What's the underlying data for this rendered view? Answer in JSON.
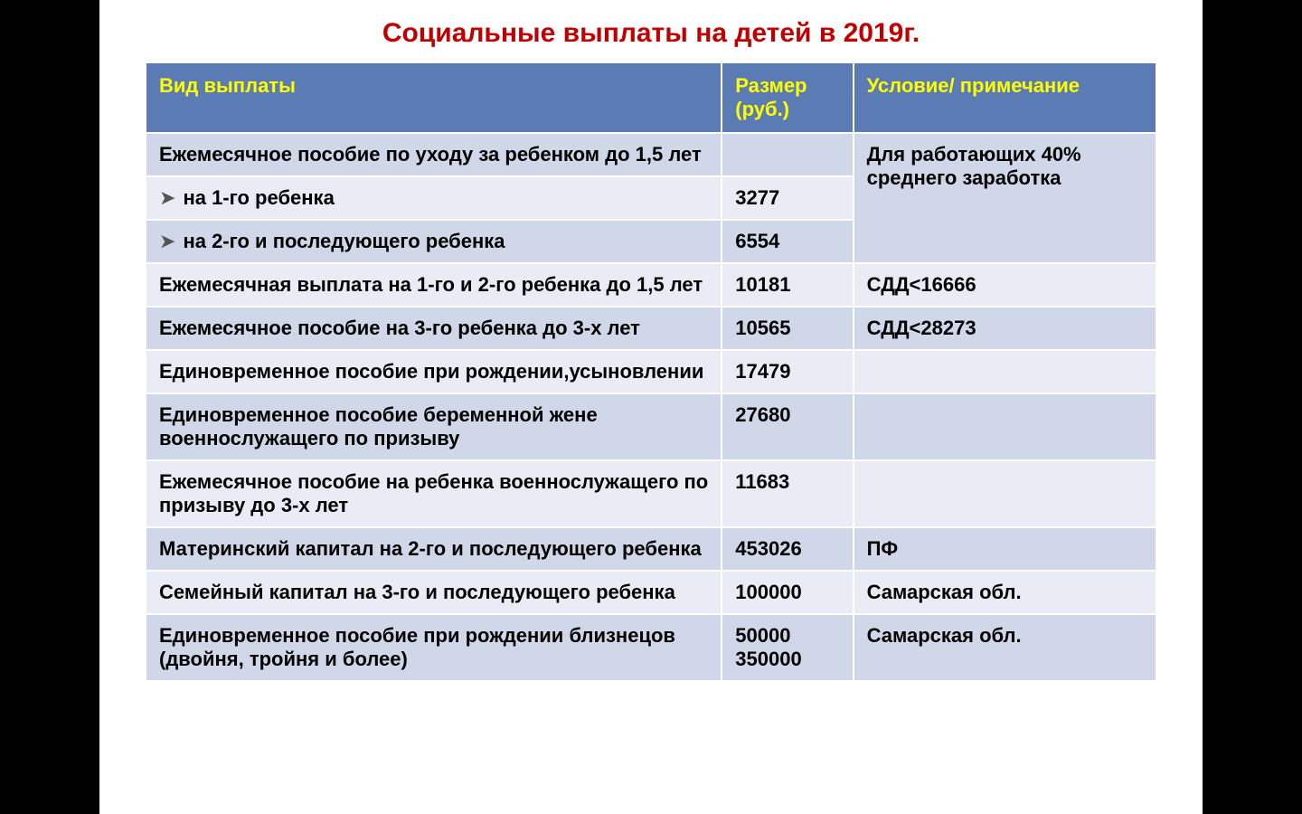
{
  "title": "Социальные выплаты на детей в 2019г.",
  "title_color": "#c00000",
  "title_fontsize": 30,
  "columns": [
    {
      "label": "Вид выплаты",
      "width": "57%"
    },
    {
      "label": "Размер (руб.)",
      "width": "13%"
    },
    {
      "label": "Условие/ примечание",
      "width": "30%"
    }
  ],
  "header_bg": "#5b7bb4",
  "header_text_color": "#ffff00",
  "header_fontsize": 22,
  "row_bg_a": "#d0d7e9",
  "row_bg_b": "#e9ecf5",
  "cell_text_color": "#000000",
  "cell_fontsize": 22,
  "bullet_glyph": "➤",
  "rows": [
    {
      "type": "plain",
      "payment": "Ежемесячное пособие по уходу за ребенком до 1,5 лет",
      "amount": "",
      "note": "Для работающих 40% среднего заработка",
      "note_rowspan": 3
    },
    {
      "type": "bullet",
      "payment": "на 1-го ребенка",
      "amount": "3277",
      "note": null
    },
    {
      "type": "bullet",
      "payment": "на 2-го и последующего ребенка",
      "amount": "6554",
      "note": null
    },
    {
      "type": "plain",
      "payment": "Ежемесячная выплата на 1-го и 2-го ребенка до 1,5 лет",
      "amount": "10181",
      "note": "СДД<16666"
    },
    {
      "type": "plain",
      "payment": "Ежемесячное пособие на 3-го ребенка до 3-х лет",
      "amount": "10565",
      "note": "СДД<28273"
    },
    {
      "type": "plain",
      "payment": "Единовременное пособие при рождении,усыновлении",
      "amount": "17479",
      "note": ""
    },
    {
      "type": "plain",
      "payment": "Единовременное пособие беременной жене военнослужащего по призыву",
      "amount": "27680",
      "note": ""
    },
    {
      "type": "plain",
      "payment": "Ежемесячное пособие на ребенка военнослужащего по призыву до 3-х лет",
      "amount": "11683",
      "note": ""
    },
    {
      "type": "plain",
      "payment": "Материнский капитал на 2-го и последующего ребенка",
      "amount": "453026",
      "note": "ПФ"
    },
    {
      "type": "plain",
      "payment": "Семейный капитал на 3-го и последующего ребенка",
      "amount": "100000",
      "note": "Самарская обл."
    },
    {
      "type": "plain",
      "payment": "Единовременное пособие при рождении близнецов (двойня, тройня и более)",
      "amount": "50000 350000",
      "note": "Самарская обл."
    }
  ]
}
